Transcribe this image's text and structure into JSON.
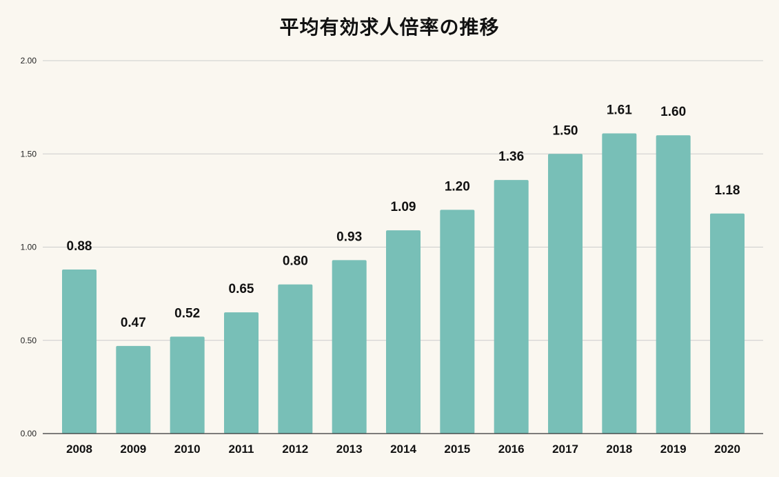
{
  "chart_data": {
    "type": "bar",
    "title": "平均有効求人倍率の推移",
    "xlabel": "",
    "ylabel": "",
    "categories": [
      "2008",
      "2009",
      "2010",
      "2011",
      "2012",
      "2013",
      "2014",
      "2015",
      "2016",
      "2017",
      "2018",
      "2019",
      "2020"
    ],
    "values": [
      0.88,
      0.47,
      0.52,
      0.65,
      0.8,
      0.93,
      1.09,
      1.2,
      1.36,
      1.5,
      1.61,
      1.6,
      1.18
    ],
    "value_labels": [
      "0.88",
      "0.47",
      "0.52",
      "0.65",
      "0.80",
      "0.93",
      "1.09",
      "1.20",
      "1.36",
      "1.50",
      "1.61",
      "1.60",
      "1.18"
    ],
    "ylim": [
      0,
      2
    ],
    "yticks": [
      "0.00",
      "0.50",
      "1.00",
      "1.50",
      "2.00"
    ],
    "grid": true,
    "legend": "none",
    "colors": {
      "bar": "#78bfb7",
      "background": "#faf7f0",
      "grid": "#cccccc",
      "axis": "#333333"
    }
  }
}
